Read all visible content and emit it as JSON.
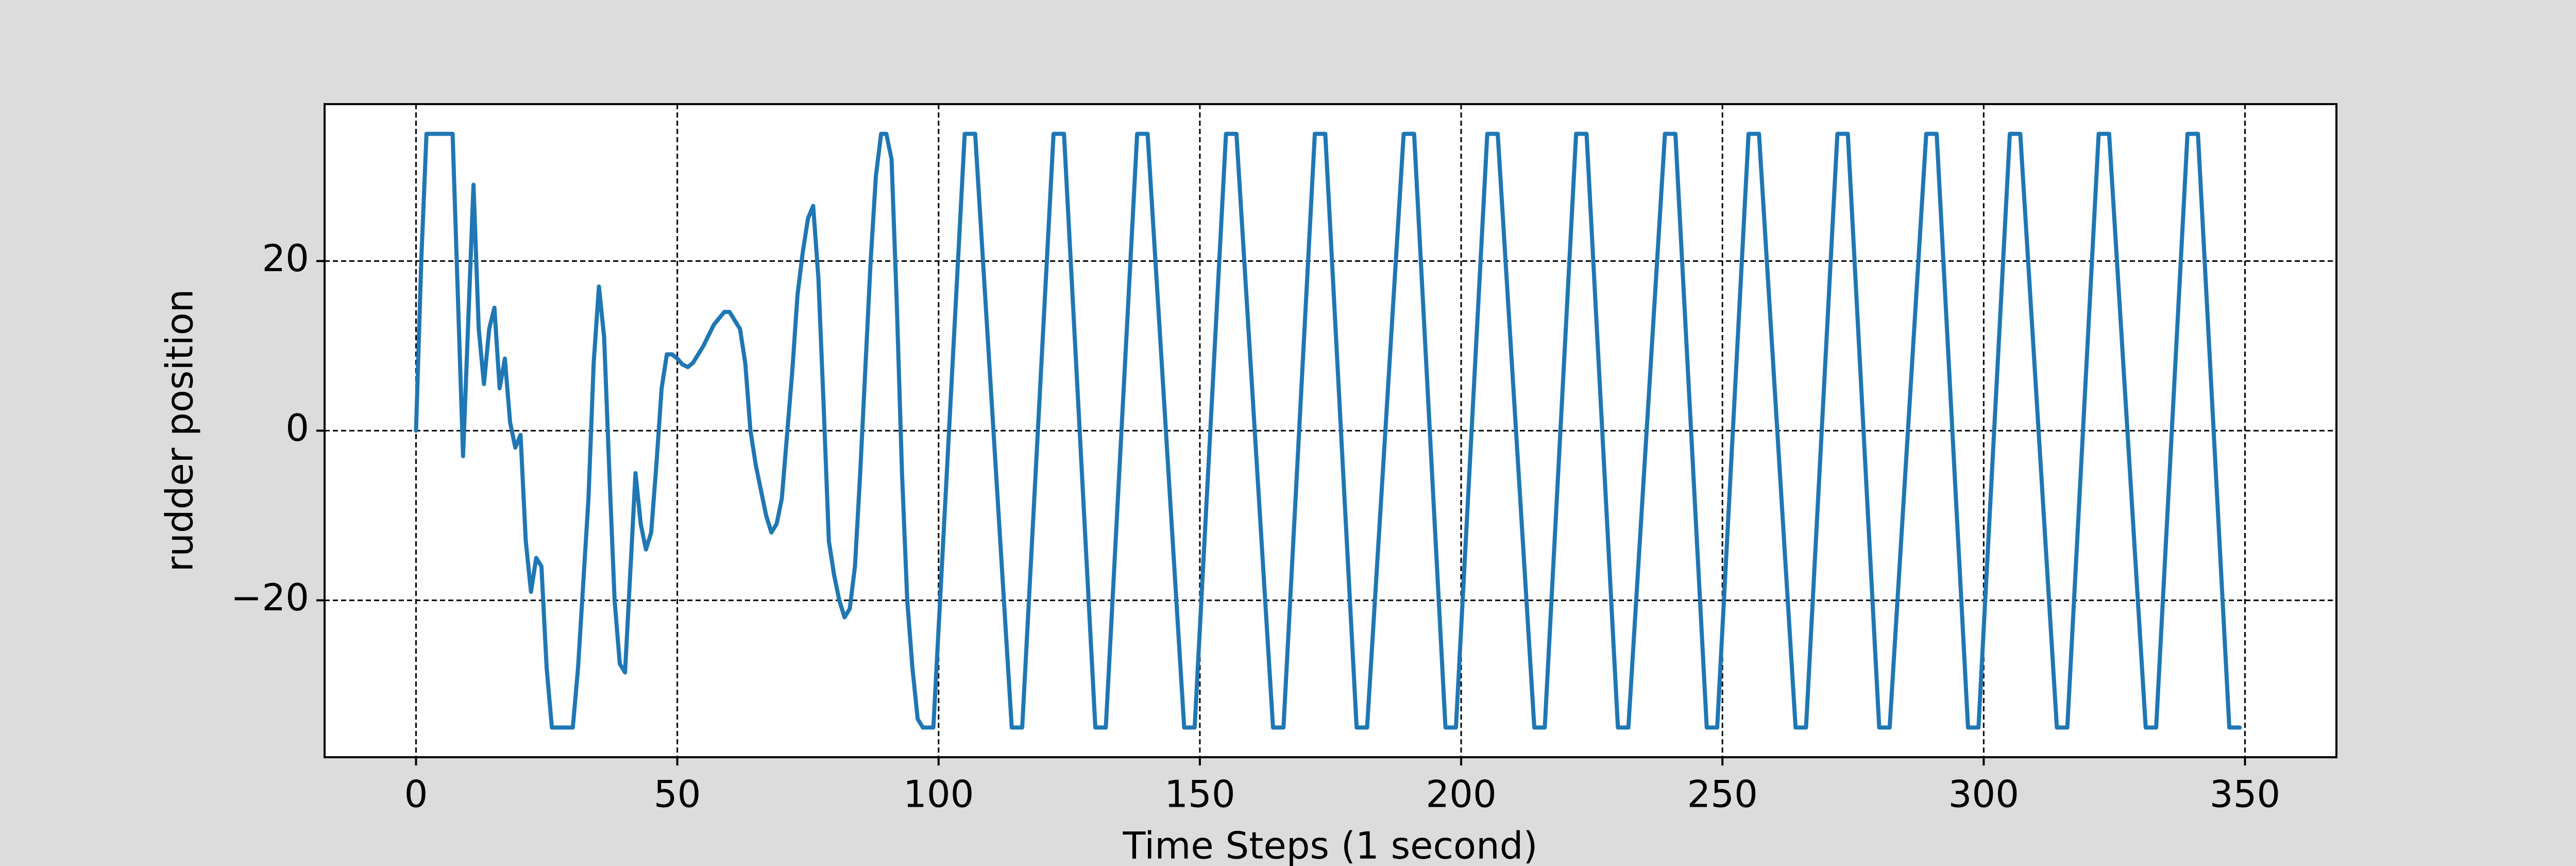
{
  "chart_data": {
    "type": "line",
    "xlabel": "Time Steps (1 second)",
    "ylabel": "rudder position",
    "color": "#1f77b4",
    "grid": true,
    "xlim": [
      -17.5,
      367.5
    ],
    "ylim": [
      -38.5,
      38.5
    ],
    "xticks": [
      0,
      50,
      100,
      150,
      200,
      250,
      300,
      350
    ],
    "yticks": [
      {
        "value": -20,
        "label": "−20"
      },
      0,
      20
    ],
    "x": [
      0,
      1,
      2,
      7,
      9,
      11,
      12,
      13,
      14,
      15,
      16,
      17,
      18,
      19,
      20,
      21,
      22,
      23,
      24,
      25,
      26,
      30,
      31,
      33,
      34,
      35,
      36,
      37,
      38,
      39,
      40,
      42,
      43,
      44,
      45,
      46,
      47,
      48,
      49,
      50,
      51,
      52,
      53,
      55,
      57,
      59,
      60,
      61,
      62,
      63,
      64,
      65,
      67,
      68,
      69,
      70,
      72,
      73,
      74,
      75,
      76,
      77,
      78,
      79,
      80,
      81,
      82,
      83,
      84,
      85,
      87,
      88,
      89,
      90,
      91,
      92,
      93,
      94,
      95,
      96,
      97,
      99,
      105,
      107,
      114,
      116,
      122,
      124,
      130,
      132,
      138,
      140,
      147,
      149,
      155,
      157,
      164,
      166,
      172,
      174,
      180,
      182,
      189,
      191,
      197,
      199,
      205,
      207,
      214,
      216,
      222,
      224,
      230,
      232,
      239,
      241,
      247,
      249,
      255,
      257,
      264,
      266,
      272,
      274,
      280,
      282,
      289,
      291,
      297,
      299,
      305,
      307,
      314,
      316,
      322,
      324,
      331,
      333,
      339,
      341,
      347,
      349
    ],
    "values": [
      0,
      20,
      35,
      35,
      -3,
      29,
      12,
      5.5,
      12,
      14.5,
      5,
      8.5,
      1,
      -2,
      -0.5,
      -13,
      -19,
      -15,
      -16,
      -28,
      -35,
      -35,
      -28,
      -8,
      8,
      17,
      11,
      -5,
      -20,
      -27.5,
      -28.5,
      -5,
      -11,
      -14,
      -12,
      -4,
      5,
      9,
      9,
      8.5,
      7.8,
      7.5,
      8,
      10,
      12.5,
      14,
      14,
      13,
      12,
      8,
      0,
      -4,
      -10,
      -12,
      -11,
      -8,
      7,
      16,
      21,
      25,
      26.5,
      18,
      3,
      -13,
      -17,
      -20,
      -22,
      -21,
      -16,
      -5,
      20,
      30,
      35,
      35,
      32,
      15,
      -5,
      -20,
      -28,
      -34,
      -35,
      -35,
      35,
      35,
      -35,
      -35,
      35,
      35,
      -35,
      -35,
      35,
      35,
      -35,
      -35,
      35,
      35,
      -35,
      -35,
      35,
      35,
      -35,
      -35,
      35,
      35,
      -35,
      -35,
      35,
      35,
      -35,
      -35,
      35,
      35,
      -35,
      -35,
      35,
      35,
      -35,
      -35,
      35,
      35,
      -35,
      -35,
      35,
      35,
      -35,
      -35,
      35,
      35,
      -35,
      -35,
      35,
      35,
      -35,
      -35,
      35,
      35,
      -35,
      -35,
      35,
      35,
      -35,
      -35
    ]
  }
}
